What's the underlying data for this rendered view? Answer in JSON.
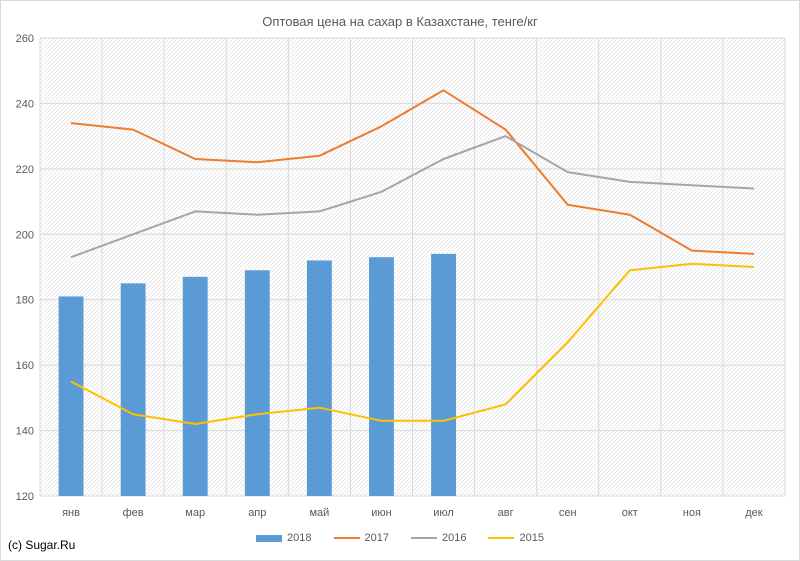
{
  "chart_data": {
    "type": "bar",
    "title": "Оптовая цена на сахар в Казахстане, тенге/кг",
    "categories": [
      "янв",
      "фев",
      "мар",
      "апр",
      "май",
      "июн",
      "июл",
      "авг",
      "сен",
      "окт",
      "ноя",
      "дек"
    ],
    "ylim": [
      120,
      260
    ],
    "yticks": [
      120,
      140,
      160,
      180,
      200,
      220,
      240,
      260
    ],
    "grid": true,
    "legend_position": "bottom",
    "series": [
      {
        "name": "2018",
        "type": "bar",
        "color": "#5b9bd5",
        "values": [
          181,
          185,
          187,
          189,
          192,
          193,
          194,
          null,
          null,
          null,
          null,
          null
        ]
      },
      {
        "name": "2017",
        "type": "line",
        "color": "#ed7d31",
        "values": [
          234,
          232,
          223,
          222,
          224,
          233,
          244,
          232,
          209,
          206,
          195,
          194
        ]
      },
      {
        "name": "2016",
        "type": "line",
        "color": "#a5a5a5",
        "values": [
          193,
          200,
          207,
          206,
          207,
          213,
          223,
          230,
          219,
          216,
          215,
          214
        ]
      },
      {
        "name": "2015",
        "type": "line",
        "color": "#ffc000",
        "values": [
          155,
          145,
          142,
          145,
          147,
          143,
          143,
          148,
          167,
          189,
          191,
          190
        ]
      }
    ]
  },
  "credit": "(c) Sugar.Ru"
}
